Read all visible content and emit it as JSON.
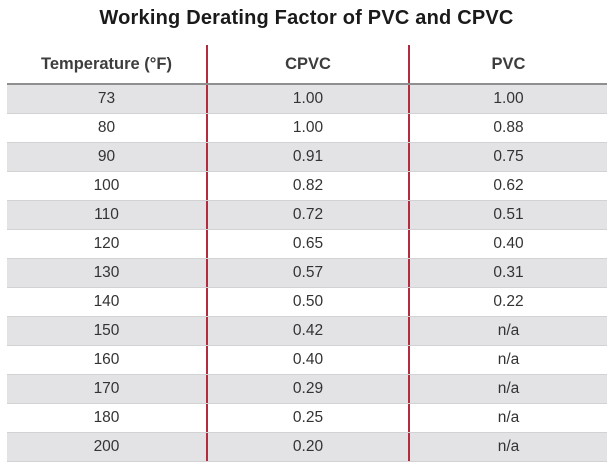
{
  "title": "Working Derating Factor of PVC and CPVC",
  "colors": {
    "title_text": "#1a1a1a",
    "header_text": "#3d3d3f",
    "body_text": "#333336",
    "divider_red": "#b02c3e",
    "stripe": "#e3e3e5",
    "header_rule": "#8f8f8f",
    "row_rule": "#d2d2d4"
  },
  "table": {
    "columns": [
      "Temperature (°F)",
      "CPVC",
      "PVC"
    ],
    "rows": [
      [
        "73",
        "1.00",
        "1.00"
      ],
      [
        "80",
        "1.00",
        "0.88"
      ],
      [
        "90",
        "0.91",
        "0.75"
      ],
      [
        "100",
        "0.82",
        "0.62"
      ],
      [
        "110",
        "0.72",
        "0.51"
      ],
      [
        "120",
        "0.65",
        "0.40"
      ],
      [
        "130",
        "0.57",
        "0.31"
      ],
      [
        "140",
        "0.50",
        "0.22"
      ],
      [
        "150",
        "0.42",
        "n/a"
      ],
      [
        "160",
        "0.40",
        "n/a"
      ],
      [
        "170",
        "0.29",
        "n/a"
      ],
      [
        "180",
        "0.25",
        "n/a"
      ],
      [
        "200",
        "0.20",
        "n/a"
      ]
    ]
  },
  "chart_data": {
    "type": "table",
    "title": "Working Derating Factor of PVC and CPVC",
    "columns": [
      "Temperature (°F)",
      "CPVC",
      "PVC"
    ],
    "categories": [
      73,
      80,
      90,
      100,
      110,
      120,
      130,
      140,
      150,
      160,
      170,
      180,
      200
    ],
    "series": [
      {
        "name": "CPVC",
        "values": [
          1.0,
          1.0,
          0.91,
          0.82,
          0.72,
          0.65,
          0.57,
          0.5,
          0.42,
          0.4,
          0.29,
          0.25,
          0.2
        ]
      },
      {
        "name": "PVC",
        "values": [
          1.0,
          0.88,
          0.75,
          0.62,
          0.51,
          0.4,
          0.31,
          0.22,
          null,
          null,
          null,
          null,
          null
        ]
      }
    ],
    "na_label": "n/a",
    "layout": {
      "stripe_rows": true,
      "column_dividers": "red",
      "alignment": "center"
    }
  }
}
